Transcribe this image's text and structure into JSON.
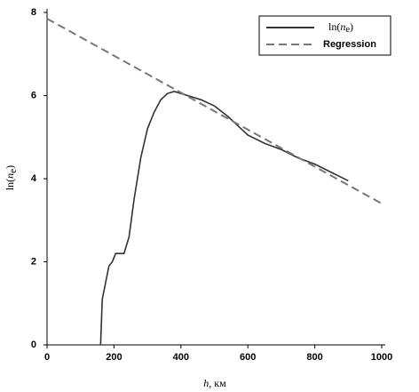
{
  "chart_data": {
    "type": "line",
    "xlabel": {
      "var": "h",
      "rest": ", км"
    },
    "ylabel": {
      "prefix": "ln(",
      "var": "n",
      "sub": "e",
      "suffix": ")"
    },
    "xlim": [
      0,
      1000
    ],
    "xticks": [
      0,
      200,
      400,
      600,
      800,
      1000
    ],
    "ylim": [
      0,
      8
    ],
    "yticks": [
      0,
      2,
      4,
      6,
      8
    ],
    "legend": "top-right",
    "series": [
      {
        "name": {
          "prefix": "ln(",
          "var": "n",
          "sub": "e",
          "suffix": ")"
        },
        "color": "#333333",
        "dash": false,
        "x": [
          160,
          165,
          175,
          185,
          195,
          205,
          230,
          245,
          260,
          280,
          300,
          320,
          340,
          360,
          380,
          420,
          460,
          500,
          540,
          580,
          600,
          650,
          700,
          750,
          800,
          850,
          900
        ],
        "values": [
          0,
          1.1,
          1.5,
          1.9,
          2.0,
          2.2,
          2.2,
          2.6,
          3.5,
          4.5,
          5.2,
          5.6,
          5.9,
          6.05,
          6.1,
          6.0,
          5.9,
          5.75,
          5.5,
          5.2,
          5.05,
          4.85,
          4.7,
          4.5,
          4.35,
          4.15,
          3.95
        ]
      },
      {
        "name": "Regression",
        "color": "#777777",
        "dash": true,
        "x": [
          0,
          1000
        ],
        "values": [
          7.85,
          3.4
        ]
      }
    ]
  }
}
